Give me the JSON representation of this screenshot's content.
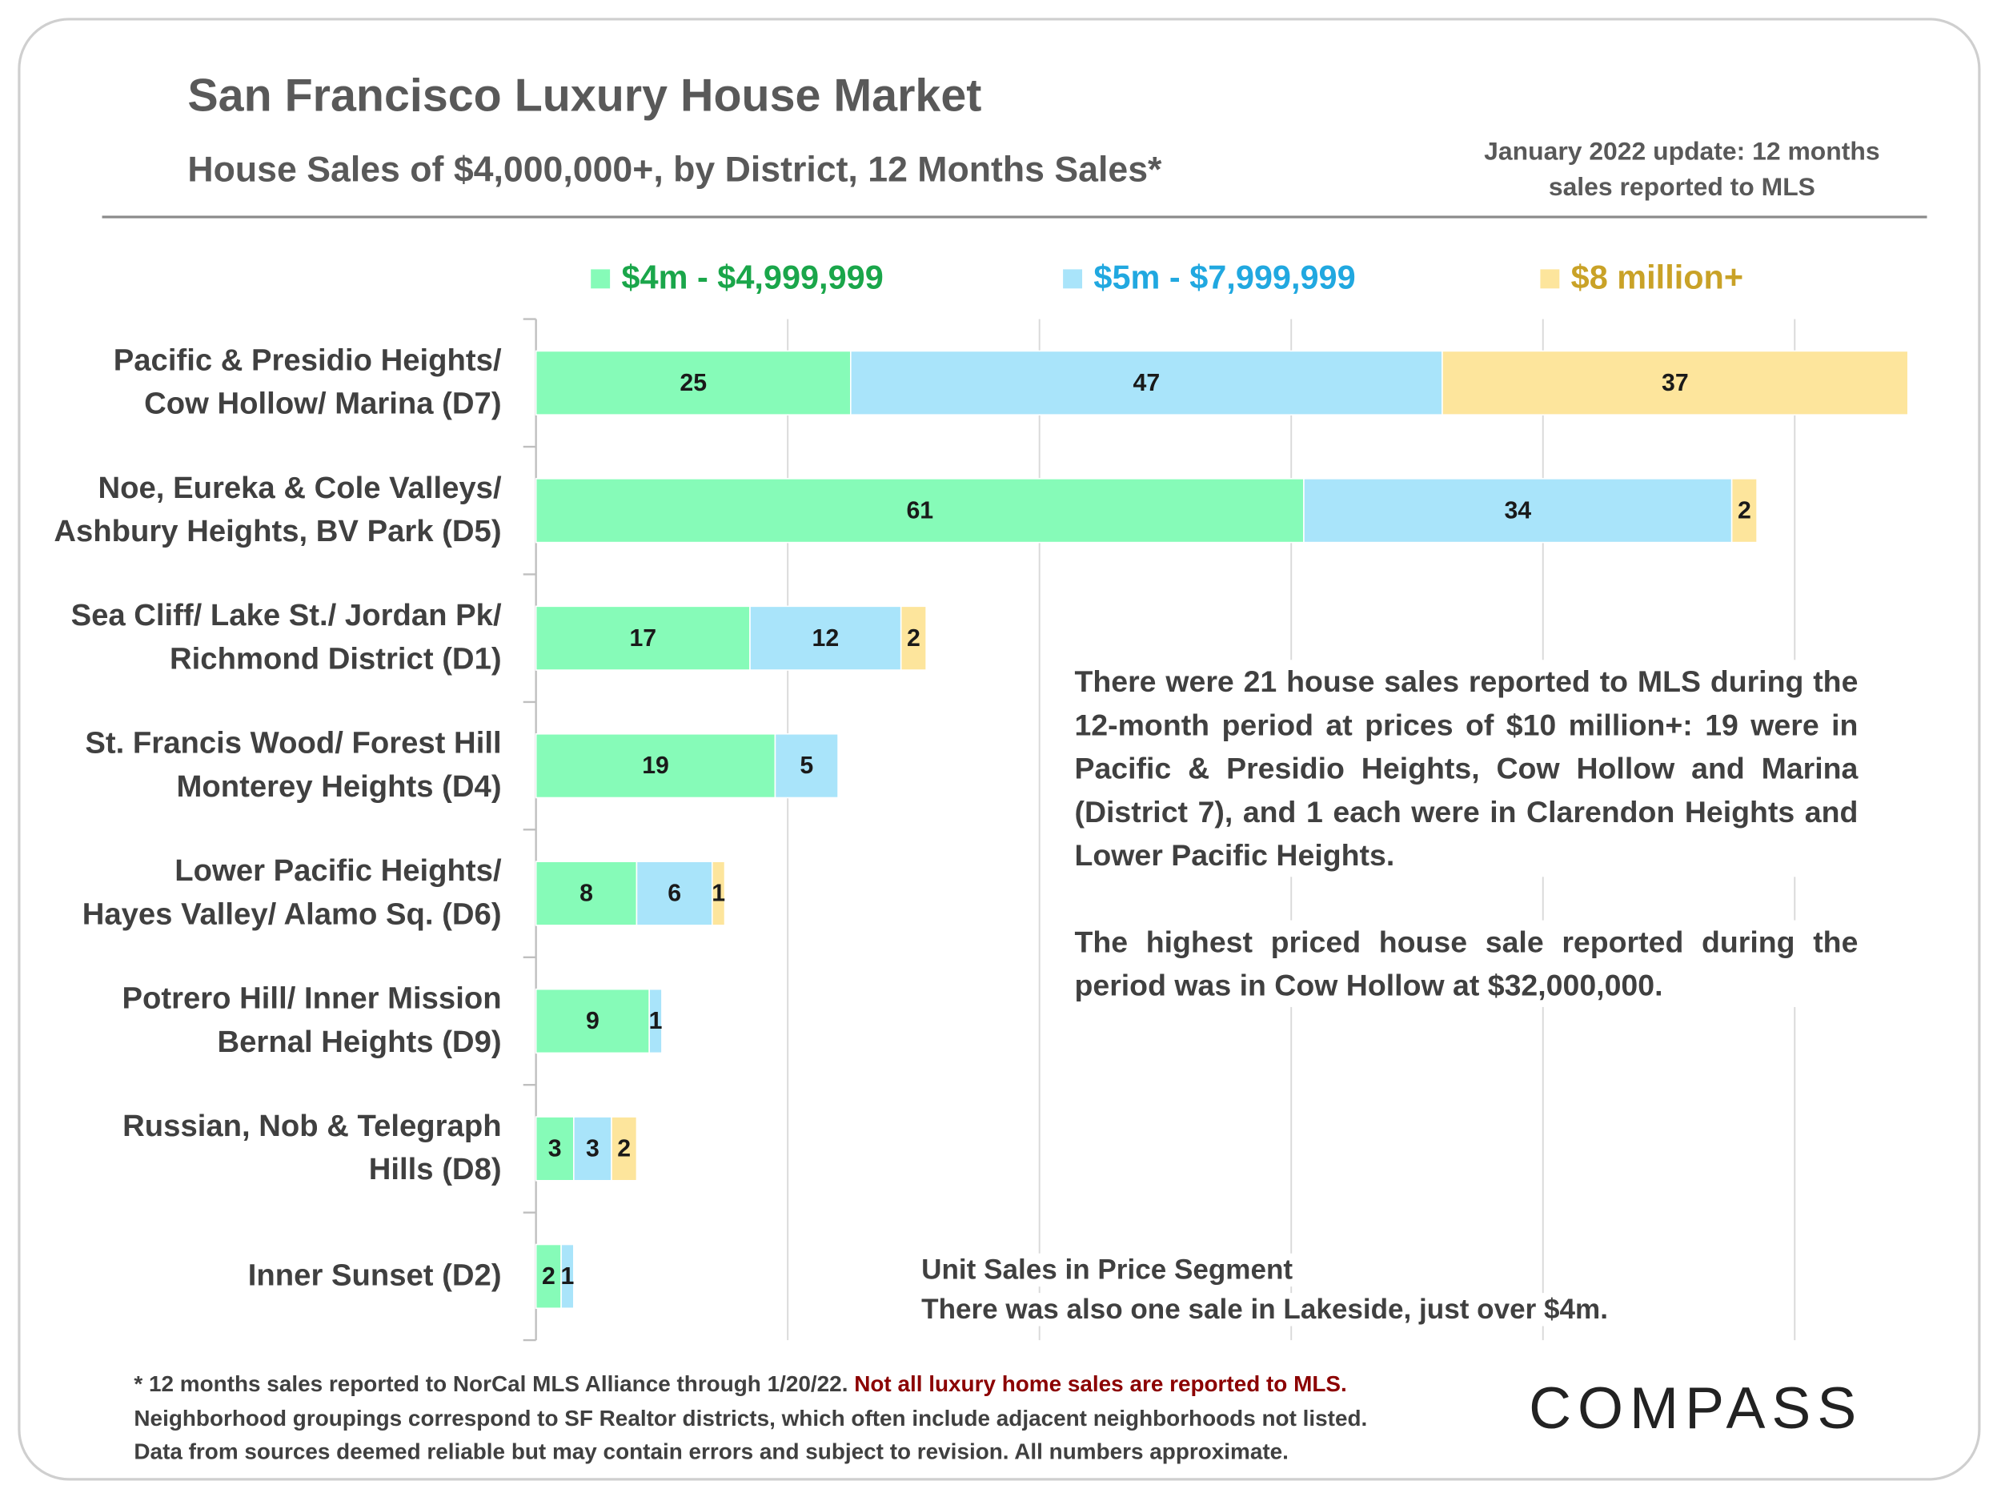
{
  "title": "San Francisco Luxury House Market",
  "subtitle": "House Sales of $4,000,000+, by District, 12 Months Sales*",
  "update_note": "January 2022 update: 12 months sales reported to MLS",
  "chart_data": {
    "type": "bar",
    "orientation": "horizontal",
    "stacked": true,
    "categories": [
      "Pacific & Presidio Heights/\nCow Hollow/ Marina (D7)",
      "Noe, Eureka & Cole Valleys/\nAshbury Heights, BV Park (D5)",
      "Sea Cliff/ Lake St./ Jordan Pk/\nRichmond District (D1)",
      "St. Francis Wood/ Forest Hill\nMonterey Heights (D4)",
      "Lower Pacific Heights/\nHayes Valley/ Alamo Sq. (D6)",
      "Potrero Hill/ Inner Mission\nBernal Heights (D9)",
      "Russian, Nob & Telegraph\nHills (D8)",
      "Inner Sunset (D2)"
    ],
    "series": [
      {
        "name": "$4m - $4,999,999",
        "color": "#86fbb8",
        "label_color": "#1aa64a",
        "values": [
          25,
          61,
          17,
          19,
          8,
          9,
          3,
          2
        ]
      },
      {
        "name": "$5m - $7,999,999",
        "color": "#a9e4fa",
        "label_color": "#21a8e0",
        "values": [
          47,
          34,
          12,
          5,
          6,
          1,
          3,
          1
        ]
      },
      {
        "name": "$8 million+",
        "color": "#fde59c",
        "label_color": "#c9a227",
        "values": [
          37,
          2,
          2,
          null,
          1,
          null,
          2,
          null
        ]
      }
    ],
    "xlim": [
      0,
      110
    ],
    "xticks": [
      0,
      20,
      40,
      60,
      80,
      100
    ],
    "grid": true,
    "legend": "top",
    "x_label": "Unit Sales in Price Segment",
    "annotations": [
      "There were 21 house sales reported to MLS during the 12-month period at prices of $10 million+:  19 were in Pacific & Presidio Heights, Cow Hollow and Marina (District 7), and 1 each were in Clarendon Heights and Lower Pacific Heights.",
      "The highest priced house sale reported during the period was in Cow Hollow at $32,000,000.",
      "There was also one sale in Lakeside, just over $4m."
    ]
  },
  "footer": [
    "* 12 months sales reported to NorCal MLS Alliance through 1/20/22. ",
    "Not all luxury home sales are reported to MLS.",
    "Neighborhood groupings correspond to SF Realtor districts, which often include adjacent neighborhoods not listed.",
    "Data from sources deemed reliable but may contain errors and subject to revision. All numbers approximate."
  ],
  "logo": "COMPASS"
}
